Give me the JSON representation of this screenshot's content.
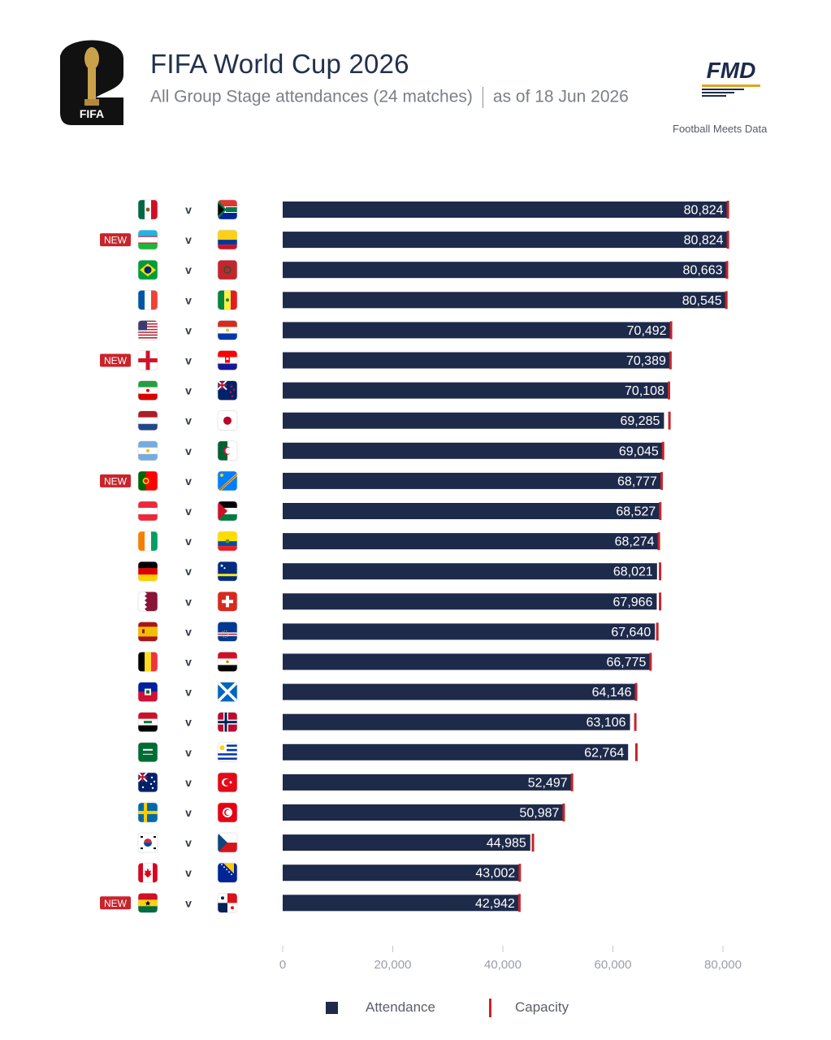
{
  "header": {
    "title": "FIFA World Cup 2026",
    "subtitle_part1": "All Group Stage attendances (24 matches)",
    "subtitle_part2": "as of 18 Jun 2026",
    "fifa_logo_text": "FIFA",
    "fmd_logo_text": "FMD",
    "fmd_caption": "Football Meets Data"
  },
  "legend": {
    "attendance_label": "Attendance",
    "capacity_label": "Capacity"
  },
  "colors": {
    "bar": "#1e2a4a",
    "capacity": "#c8242b",
    "new_badge": "#c8242b",
    "axis_text": "#9a9ea6"
  },
  "chart_data": {
    "type": "bar",
    "orientation": "horizontal",
    "xlim": [
      0,
      80000
    ],
    "x_ticks": [
      "0",
      "20,000",
      "40,000",
      "60,000",
      "80,000"
    ],
    "x_tick_values": [
      0,
      20000,
      40000,
      60000,
      80000
    ],
    "vs_label": "v",
    "new_label": "NEW",
    "matches": [
      {
        "home": "mexico",
        "away": "south-africa",
        "attendance": 80824,
        "label": "80,824",
        "capacity": 80824,
        "new": false
      },
      {
        "home": "uzbekistan",
        "away": "colombia",
        "attendance": 80824,
        "label": "80,824",
        "capacity": 80824,
        "new": true
      },
      {
        "home": "brazil",
        "away": "morocco",
        "attendance": 80663,
        "label": "80,663",
        "capacity": 80663,
        "new": false
      },
      {
        "home": "france",
        "away": "senegal",
        "attendance": 80545,
        "label": "80,545",
        "capacity": 80545,
        "new": false
      },
      {
        "home": "usa",
        "away": "paraguay",
        "attendance": 70492,
        "label": "70,492",
        "capacity": 70492,
        "new": false
      },
      {
        "home": "england",
        "away": "croatia",
        "attendance": 70389,
        "label": "70,389",
        "capacity": 70389,
        "new": true
      },
      {
        "home": "iran",
        "away": "new-zealand",
        "attendance": 70108,
        "label": "70,108",
        "capacity": 70108,
        "new": false
      },
      {
        "home": "netherlands",
        "away": "japan",
        "attendance": 69285,
        "label": "69,285",
        "capacity": 70200,
        "new": false
      },
      {
        "home": "argentina",
        "away": "algeria",
        "attendance": 69045,
        "label": "69,045",
        "capacity": 69045,
        "new": false
      },
      {
        "home": "portugal",
        "away": "dr-congo",
        "attendance": 68777,
        "label": "68,777",
        "capacity": 68777,
        "new": true
      },
      {
        "home": "austria",
        "away": "jordan",
        "attendance": 68527,
        "label": "68,527",
        "capacity": 68527,
        "new": false
      },
      {
        "home": "ivory-coast",
        "away": "ecuador",
        "attendance": 68274,
        "label": "68,274",
        "capacity": 68274,
        "new": false
      },
      {
        "home": "germany",
        "away": "curacao",
        "attendance": 68021,
        "label": "68,021",
        "capacity": 68500,
        "new": false
      },
      {
        "home": "qatar",
        "away": "switzerland",
        "attendance": 67966,
        "label": "67,966",
        "capacity": 68500,
        "new": false
      },
      {
        "home": "spain",
        "away": "cape-verde",
        "attendance": 67640,
        "label": "67,640",
        "capacity": 68000,
        "new": false
      },
      {
        "home": "belgium",
        "away": "egypt",
        "attendance": 66775,
        "label": "66,775",
        "capacity": 66775,
        "new": false
      },
      {
        "home": "haiti",
        "away": "scotland",
        "attendance": 64146,
        "label": "64,146",
        "capacity": 64146,
        "new": false
      },
      {
        "home": "iraq",
        "away": "norway",
        "attendance": 63106,
        "label": "63,106",
        "capacity": 64000,
        "new": false
      },
      {
        "home": "saudi-arabia",
        "away": "uruguay",
        "attendance": 62764,
        "label": "62,764",
        "capacity": 64200,
        "new": false
      },
      {
        "home": "australia",
        "away": "turkey",
        "attendance": 52497,
        "label": "52,497",
        "capacity": 52497,
        "new": false
      },
      {
        "home": "sweden",
        "away": "tunisia",
        "attendance": 50987,
        "label": "50,987",
        "capacity": 50987,
        "new": false
      },
      {
        "home": "south-korea",
        "away": "czechia",
        "attendance": 44985,
        "label": "44,985",
        "capacity": 45400,
        "new": false
      },
      {
        "home": "canada",
        "away": "bosnia",
        "attendance": 43002,
        "label": "43,002",
        "capacity": 43002,
        "new": false
      },
      {
        "home": "ghana",
        "away": "panama",
        "attendance": 42942,
        "label": "42,942",
        "capacity": 42942,
        "new": true
      }
    ]
  }
}
